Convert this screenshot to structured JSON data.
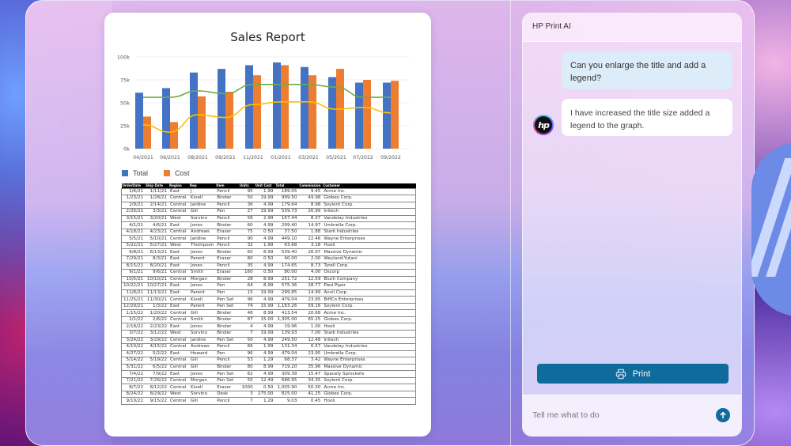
{
  "document": {
    "chart_title": "Sales Report",
    "legend": [
      {
        "label": "Total",
        "color": "#4472C4"
      },
      {
        "label": "Cost",
        "color": "#ED7D31"
      }
    ],
    "table": {
      "headers": [
        "OrderDate",
        "Ship Date",
        "Region",
        "Rep",
        "Item",
        "Units",
        "Unit Cost",
        "Total",
        "Commission",
        "Customer"
      ],
      "rows": [
        [
          "1/6/21",
          "1/11/21",
          "East",
          "J",
          "Pencil",
          "95",
          "1.99",
          "189.05",
          "9.45",
          "Acme Inc."
        ],
        [
          "1/23/21",
          "1/28/21",
          "Central",
          "Kivell",
          "Binder",
          "50",
          "19.99",
          "999.50",
          "49.98",
          "Globex Corp."
        ],
        [
          "2/9/21",
          "2/14/21",
          "Central",
          "Jardine",
          "Pencil",
          "36",
          "4.99",
          "179.64",
          "8.98",
          "Soylent Corp."
        ],
        [
          "2/26/21",
          "3/3/21",
          "Central",
          "Gill",
          "Pen",
          "27",
          "19.99",
          "539.73",
          "26.99",
          "Initech"
        ],
        [
          "3/15/21",
          "3/20/21",
          "West",
          "Sorvino",
          "Pencil",
          "56",
          "2.99",
          "167.44",
          "8.37",
          "Vandelay Industries"
        ],
        [
          "4/1/21",
          "4/6/21",
          "East",
          "Jones",
          "Binder",
          "60",
          "4.99",
          "299.40",
          "14.97",
          "Umbrella Corp."
        ],
        [
          "4/18/21",
          "4/23/21",
          "Central",
          "Andrews",
          "Eraser",
          "75",
          "0.50",
          "37.50",
          "1.88",
          "Stark Industries"
        ],
        [
          "5/5/21",
          "5/10/21",
          "Central",
          "Jardine",
          "Pencil",
          "90",
          "4.99",
          "449.10",
          "22.46",
          "Wayne Enterprises"
        ],
        [
          "5/22/21",
          "5/27/21",
          "West",
          "Thompson",
          "Pencil",
          "32",
          "1.99",
          "63.68",
          "3.18",
          "Hooli"
        ],
        [
          "6/8/21",
          "6/13/21",
          "East",
          "Jones",
          "Binder",
          "60",
          "8.99",
          "539.40",
          "26.97",
          "Massive Dynamic"
        ],
        [
          "7/29/21",
          "8/3/21",
          "East",
          "Parent",
          "Eraser",
          "80",
          "0.50",
          "40.00",
          "2.00",
          "Weyland-Yutani"
        ],
        [
          "8/15/21",
          "8/20/21",
          "East",
          "Jones",
          "Pencil",
          "35",
          "4.99",
          "174.65",
          "8.73",
          "Tyrell Corp."
        ],
        [
          "9/1/21",
          "9/6/21",
          "Central",
          "Smith",
          "Eraser",
          "160",
          "0.50",
          "80.00",
          "4.00",
          "Oscorp"
        ],
        [
          "10/5/21",
          "10/10/21",
          "Central",
          "Morgan",
          "Binder",
          "28",
          "8.99",
          "251.72",
          "12.59",
          "Bluth Company"
        ],
        [
          "10/22/21",
          "10/27/21",
          "East",
          "Jones",
          "Pen",
          "64",
          "8.99",
          "575.36",
          "28.77",
          "Pied Piper"
        ],
        [
          "11/8/21",
          "11/13/21",
          "East",
          "Parent",
          "Pen",
          "15",
          "19.99",
          "299.85",
          "14.99",
          "Anvil Corp."
        ],
        [
          "11/25/21",
          "11/30/21",
          "Central",
          "Kivell",
          "Pen Set",
          "96",
          "4.99",
          "479.04",
          "23.95",
          "BiffCo Enterprises"
        ],
        [
          "12/29/21",
          "1/3/22",
          "East",
          "Parent",
          "Pen Set",
          "74",
          "15.99",
          "1,183.26",
          "59.16",
          "Soylent Corp."
        ],
        [
          "1/15/22",
          "1/20/22",
          "Central",
          "Gill",
          "Binder",
          "46",
          "8.99",
          "413.54",
          "20.68",
          "Acme Inc."
        ],
        [
          "2/1/22",
          "2/6/22",
          "Central",
          "Smith",
          "Binder",
          "87",
          "15.00",
          "1,305.00",
          "65.25",
          "Globex Corp."
        ],
        [
          "2/18/22",
          "2/23/22",
          "East",
          "Jones",
          "Binder",
          "4",
          "4.99",
          "19.96",
          "1.00",
          "Hooli"
        ],
        [
          "3/7/22",
          "3/12/22",
          "West",
          "Sorvino",
          "Binder",
          "7",
          "19.99",
          "139.93",
          "7.00",
          "Stark Industries"
        ],
        [
          "3/24/22",
          "3/29/22",
          "Central",
          "Jardine",
          "Pen Set",
          "50",
          "4.99",
          "249.50",
          "12.48",
          "Initech"
        ],
        [
          "4/10/22",
          "4/15/22",
          "Central",
          "Andrews",
          "Pencil",
          "66",
          "1.99",
          "131.34",
          "6.57",
          "Vandelay Industries"
        ],
        [
          "4/27/22",
          "5/2/22",
          "East",
          "Howard",
          "Pen",
          "96",
          "4.99",
          "479.04",
          "23.95",
          "Umbrella Corp."
        ],
        [
          "5/14/22",
          "5/19/22",
          "Central",
          "Gill",
          "Pencil",
          "53",
          "1.29",
          "68.37",
          "3.42",
          "Wayne Enterprises"
        ],
        [
          "5/31/22",
          "6/5/22",
          "Central",
          "Gill",
          "Binder",
          "80",
          "8.99",
          "719.20",
          "35.96",
          "Massive Dynamic"
        ],
        [
          "7/4/22",
          "7/9/22",
          "East",
          "Jones",
          "Pen Set",
          "62",
          "4.99",
          "309.38",
          "15.47",
          "Spacely Sprockets"
        ],
        [
          "7/21/22",
          "7/26/22",
          "Central",
          "Morgan",
          "Pen Set",
          "55",
          "12.49",
          "686.95",
          "34.35",
          "Soylent Corp."
        ],
        [
          "8/7/22",
          "8/12/22",
          "Central",
          "Kivell",
          "Eraser",
          "1000",
          "0.50",
          "1,005.90",
          "50.30",
          "Acme Inc."
        ],
        [
          "8/24/22",
          "8/29/22",
          "West",
          "Sorvino",
          "Desk",
          "3",
          "275.00",
          "825.00",
          "41.25",
          "Globex Corp."
        ],
        [
          "9/10/22",
          "9/15/22",
          "Central",
          "Gill",
          "Pencil",
          "7",
          "1.29",
          "9.03",
          "0.45",
          "Hooli"
        ]
      ]
    }
  },
  "chart_data": {
    "type": "bar",
    "title": "Sales Report",
    "categories": [
      "04/2021",
      "06/2021",
      "08/2021",
      "09/2021",
      "11/2021",
      "01/2021",
      "03/2021",
      "05/2021",
      "07/2022",
      "09/2022"
    ],
    "series": [
      {
        "name": "Total",
        "type": "bar",
        "color": "#4472C4",
        "values": [
          61,
          66,
          83,
          87,
          91,
          94,
          89,
          78,
          72,
          72
        ]
      },
      {
        "name": "Cost",
        "type": "bar",
        "color": "#ED7D31",
        "values": [
          35,
          29,
          57,
          62,
          80,
          91,
          80,
          87,
          75,
          74
        ]
      },
      {
        "name": "Green trend",
        "type": "line",
        "color": "#70AD47",
        "values": [
          56,
          56,
          63,
          60,
          70,
          70,
          70,
          67,
          56,
          56
        ]
      },
      {
        "name": "Yellow trend",
        "type": "line",
        "color": "#FFC000",
        "values": [
          26,
          18,
          37,
          34,
          48,
          51,
          51,
          43,
          45,
          39
        ]
      }
    ],
    "yticks": [
      "0k",
      "25k",
      "50k",
      "75k",
      "100k"
    ],
    "ylim": [
      0,
      100
    ],
    "xlabel": "",
    "ylabel": "",
    "grid": true,
    "legend_position": "bottom-left",
    "legend": [
      "Total",
      "Cost"
    ]
  },
  "chat": {
    "title": "HP Print AI",
    "messages": [
      {
        "role": "user",
        "text": "Can you enlarge the title and add a legend?"
      },
      {
        "role": "assistant",
        "text": "I have increased the title size added a legend to the graph."
      }
    ],
    "avatar_label": "hp",
    "print_label": "Print",
    "input_placeholder": "Tell me what to do",
    "accent_color": "#0E6B9B"
  }
}
